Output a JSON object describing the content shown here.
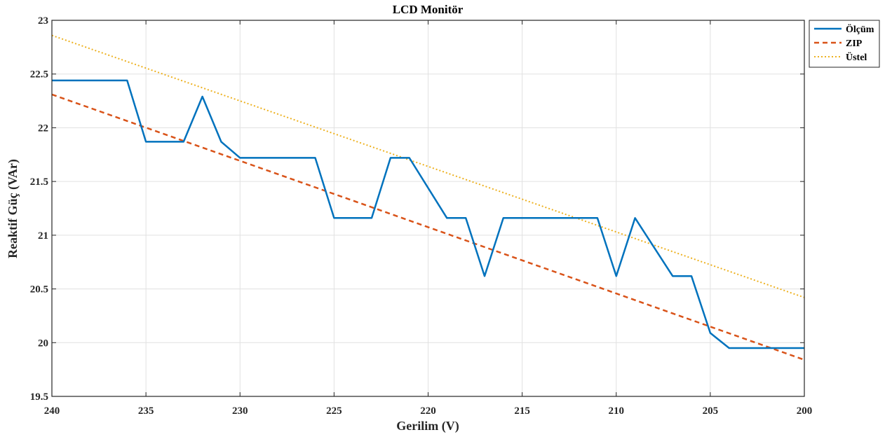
{
  "chart_data": {
    "type": "line",
    "title": "LCD Monitör",
    "xlabel": "Gerilim (V)",
    "ylabel": "Reaktif Güç (VAr)",
    "xlim": [
      240,
      200
    ],
    "ylim": [
      19.5,
      23
    ],
    "x_reversed": true,
    "grid": true,
    "legend_position": "top-right",
    "xticks": [
      240,
      235,
      230,
      225,
      220,
      215,
      210,
      205,
      200
    ],
    "yticks": [
      19.5,
      20,
      20.5,
      21,
      21.5,
      22,
      22.5,
      23
    ],
    "xtick_labels": [
      "240",
      "235",
      "230",
      "225",
      "220",
      "215",
      "210",
      "205",
      "200"
    ],
    "ytick_labels": [
      "19.5",
      "20",
      "20.5",
      "21",
      "21.5",
      "22",
      "22.5",
      "23"
    ],
    "series": [
      {
        "name": "Ölçüm",
        "color": "#0072BD",
        "style": "solid",
        "x": [
          240,
          236,
          235,
          233,
          232,
          231,
          230,
          227,
          226,
          225,
          223,
          222,
          221,
          219,
          218,
          217,
          216,
          213,
          211,
          210,
          209,
          207,
          206,
          205,
          204,
          200
        ],
        "y": [
          22.44,
          22.44,
          21.87,
          21.87,
          22.29,
          21.87,
          21.72,
          21.72,
          21.72,
          21.16,
          21.16,
          21.72,
          21.72,
          21.16,
          21.16,
          20.62,
          21.16,
          21.16,
          21.16,
          20.62,
          21.16,
          20.62,
          20.62,
          20.09,
          19.95,
          19.95
        ]
      },
      {
        "name": "ZIP",
        "color": "#D95319",
        "style": "dashed",
        "x": [
          240,
          200
        ],
        "y": [
          22.31,
          19.84
        ]
      },
      {
        "name": "Üstel",
        "color": "#EDB120",
        "style": "dotted",
        "x": [
          240,
          200
        ],
        "y": [
          22.86,
          20.42
        ]
      }
    ]
  }
}
